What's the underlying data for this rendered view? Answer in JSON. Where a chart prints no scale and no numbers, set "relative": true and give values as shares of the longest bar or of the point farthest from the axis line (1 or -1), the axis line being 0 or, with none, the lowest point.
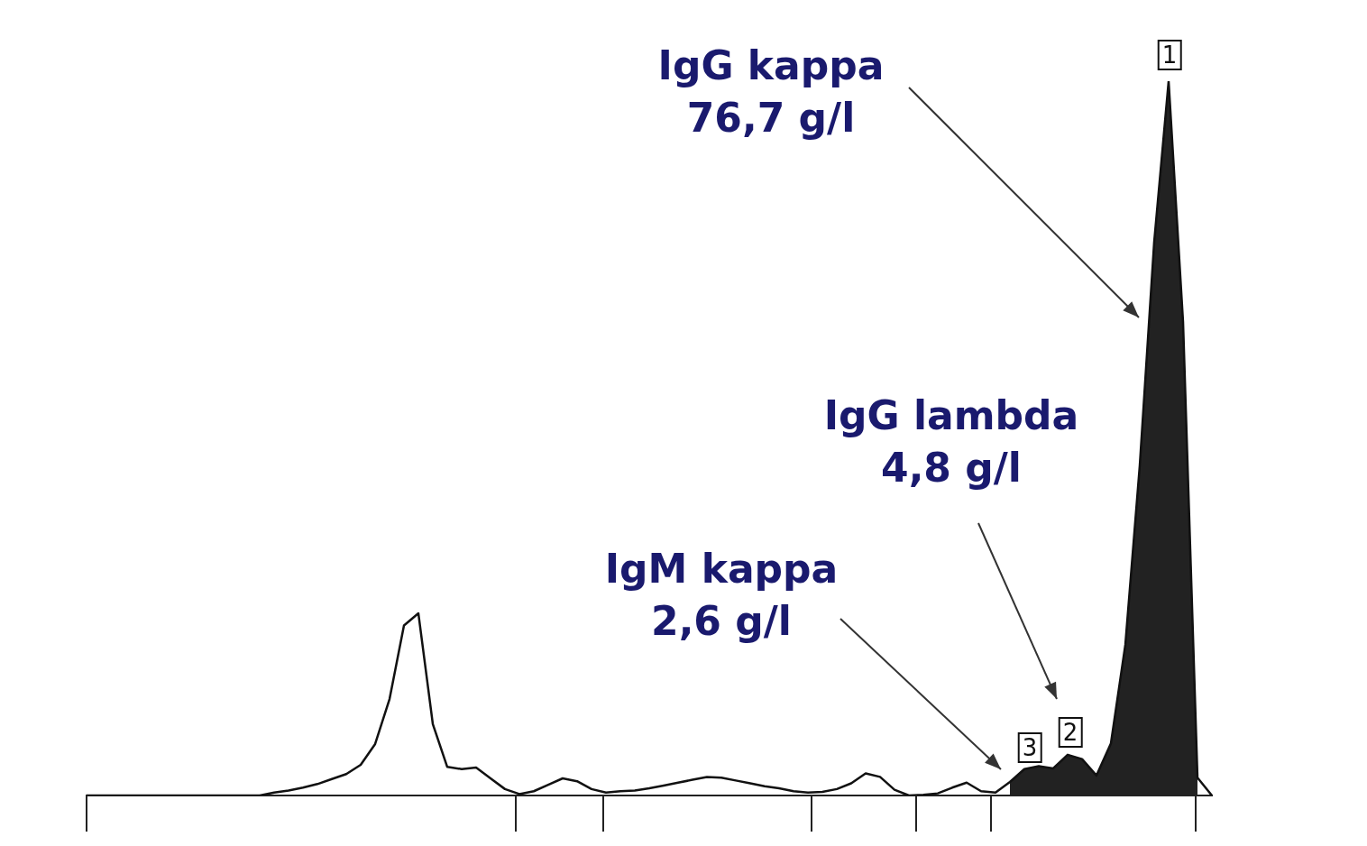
{
  "chart_data": {
    "type": "line",
    "relative": true,
    "tick_labels": false,
    "grid": false,
    "legend": false,
    "marker": "none",
    "categories": [
      null,
      null,
      null,
      null,
      null,
      null,
      null,
      null,
      null,
      null,
      null,
      null,
      null,
      null,
      null,
      null,
      null,
      null,
      null,
      null,
      null,
      null,
      null,
      null,
      null,
      null,
      null,
      null,
      null,
      null,
      null,
      null,
      null,
      null,
      null,
      null,
      null,
      null,
      null,
      null,
      null,
      null,
      null,
      null,
      null,
      null,
      null,
      null,
      null,
      null,
      null,
      null,
      null,
      null,
      null,
      null,
      null,
      null,
      null,
      null,
      null,
      null,
      null,
      null,
      null,
      null,
      null,
      null,
      null,
      null,
      null,
      null,
      null,
      null,
      null,
      null,
      null,
      null,
      null
    ],
    "series": [
      {
        "color": "#111111",
        "values": [
          0,
          0,
          0,
          0,
          0,
          0,
          0,
          0,
          0,
          0,
          0,
          0,
          0,
          0.004,
          0.007,
          0.011,
          0.016,
          0.023,
          0.03,
          0.043,
          0.072,
          0.135,
          0.238,
          0.255,
          0.1,
          0.04,
          0.037,
          0.039,
          0.024,
          0.009,
          0.002,
          0.006,
          0.015,
          0.024,
          0.02,
          0.009,
          0.004,
          0.006,
          0.007,
          0.01,
          0.014,
          0.018,
          0.022,
          0.026,
          0.025,
          0.021,
          0.017,
          0.013,
          0.01,
          0.006,
          0.004,
          0.005,
          0.009,
          0.017,
          0.031,
          0.026,
          0.008,
          0,
          0.001,
          0.003,
          0.011,
          0.018,
          0.006,
          0.004,
          0.019,
          0.037,
          0.041,
          0.038,
          0.057,
          0.051,
          0.028,
          0.073,
          0.211,
          0.462,
          0.775,
          1,
          0.663,
          0.025,
          0
        ]
      },
      {
        "type": "area",
        "color": "#222222",
        "values": [
          null,
          null,
          null,
          null,
          null,
          null,
          null,
          null,
          null,
          null,
          null,
          null,
          null,
          null,
          null,
          null,
          null,
          null,
          null,
          null,
          null,
          null,
          null,
          null,
          null,
          null,
          null,
          null,
          null,
          null,
          null,
          null,
          null,
          null,
          null,
          null,
          null,
          null,
          null,
          null,
          null,
          null,
          null,
          null,
          null,
          null,
          null,
          null,
          null,
          null,
          null,
          null,
          null,
          null,
          null,
          null,
          null,
          null,
          null,
          null,
          null,
          null,
          null,
          null,
          0.019,
          0.037,
          0.041,
          0.038,
          0.057,
          0.051,
          0.028,
          0.073,
          0.211,
          0.462,
          0.775,
          1,
          0.663,
          0.025,
          null
        ]
      }
    ],
    "annotations": [
      "IgG kappa\n76,7 g/l",
      "IgG lambda\n4,8 g/l",
      "IgM kappa\n2,6 g/l",
      "1",
      "2",
      "3"
    ]
  }
}
